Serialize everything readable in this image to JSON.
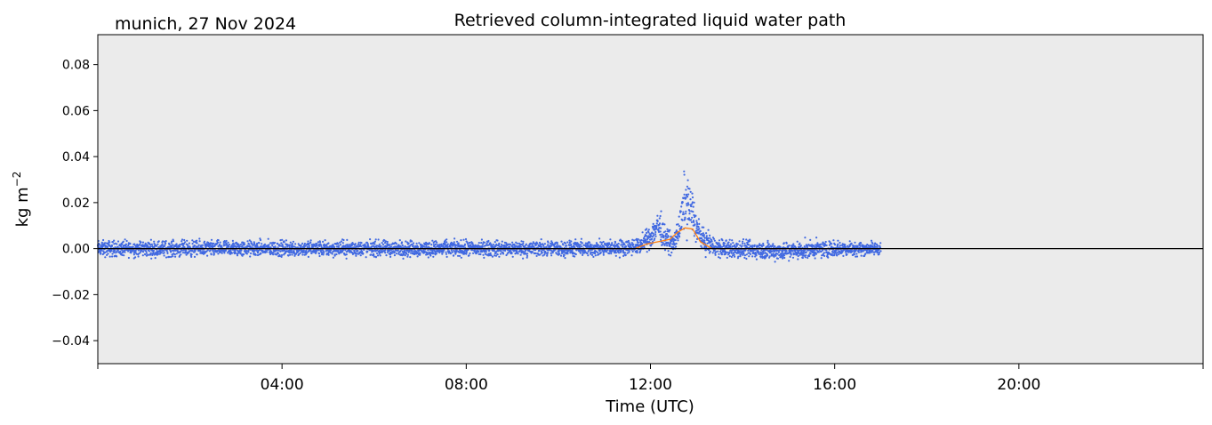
{
  "chart_data": {
    "type": "scatter",
    "title": "Retrieved column-integrated liquid water path",
    "subtitle": "munich, 27 Nov 2024",
    "xlabel": "Time (UTC)",
    "ylabel": "kg m",
    "ylabel_exponent": "−2",
    "xlim": [
      "00:00",
      "24:00"
    ],
    "ylim": [
      -0.05,
      0.093
    ],
    "x_ticks": [
      {
        "value": "00:00",
        "label": ""
      },
      {
        "value": "04:00",
        "label": "04:00"
      },
      {
        "value": "08:00",
        "label": "08:00"
      },
      {
        "value": "12:00",
        "label": "12:00"
      },
      {
        "value": "16:00",
        "label": "16:00"
      },
      {
        "value": "20:00",
        "label": "20:00"
      },
      {
        "value": "24:00",
        "label": ""
      }
    ],
    "y_ticks": [
      {
        "value": -0.04,
        "label": "−0.04"
      },
      {
        "value": -0.02,
        "label": "−0.02"
      },
      {
        "value": 0.0,
        "label": "0.00"
      },
      {
        "value": 0.02,
        "label": "0.02"
      },
      {
        "value": 0.04,
        "label": "0.04"
      },
      {
        "value": 0.06,
        "label": "0.06"
      },
      {
        "value": 0.08,
        "label": "0.08"
      }
    ],
    "reference_line": 0.0,
    "grid": false,
    "background_color": "#ebebeb",
    "series": [
      {
        "kind": "scatter",
        "color": "#4169e1",
        "note": "retrieval samples: envelope of scatter points (time, min, max)",
        "envelope": [
          [
            "00:00",
            -0.005,
            0.005
          ],
          [
            "01:00",
            -0.005,
            0.005
          ],
          [
            "02:00",
            -0.005,
            0.005
          ],
          [
            "03:00",
            -0.005,
            0.005
          ],
          [
            "04:00",
            -0.005,
            0.005
          ],
          [
            "05:00",
            -0.005,
            0.005
          ],
          [
            "06:00",
            -0.005,
            0.005
          ],
          [
            "07:00",
            -0.005,
            0.005
          ],
          [
            "08:00",
            -0.005,
            0.005
          ],
          [
            "09:00",
            -0.005,
            0.005
          ],
          [
            "10:00",
            -0.005,
            0.005
          ],
          [
            "11:00",
            -0.005,
            0.005
          ],
          [
            "11:45",
            -0.004,
            0.006
          ],
          [
            "12:00",
            -0.002,
            0.012
          ],
          [
            "12:10",
            0.0,
            0.021
          ],
          [
            "12:20",
            -0.003,
            0.012
          ],
          [
            "12:30",
            -0.005,
            0.008
          ],
          [
            "12:40",
            0.001,
            0.022
          ],
          [
            "12:45",
            0.002,
            0.043
          ],
          [
            "12:50",
            0.003,
            0.033
          ],
          [
            "12:55",
            0.002,
            0.03
          ],
          [
            "13:00",
            0.0,
            0.018
          ],
          [
            "13:10",
            -0.004,
            0.01
          ],
          [
            "13:30",
            -0.006,
            0.006
          ],
          [
            "14:00",
            -0.006,
            0.005
          ],
          [
            "15:00",
            -0.007,
            0.005
          ],
          [
            "16:00",
            -0.005,
            0.005
          ],
          [
            "17:00",
            -0.004,
            0.004
          ]
        ]
      },
      {
        "kind": "line",
        "color": "#ff7f0e",
        "note": "smoothed retrieval",
        "points": [
          [
            "00:20",
            0.0
          ],
          [
            "11:40",
            0.0
          ],
          [
            "11:55",
            0.002
          ],
          [
            "12:10",
            0.003
          ],
          [
            "12:25",
            0.004
          ],
          [
            "12:35",
            0.007
          ],
          [
            "12:45",
            0.009
          ],
          [
            "12:55",
            0.0085
          ],
          [
            "13:05",
            0.003
          ],
          [
            "13:20",
            0.0
          ],
          [
            "16:50",
            0.0
          ]
        ]
      }
    ]
  }
}
